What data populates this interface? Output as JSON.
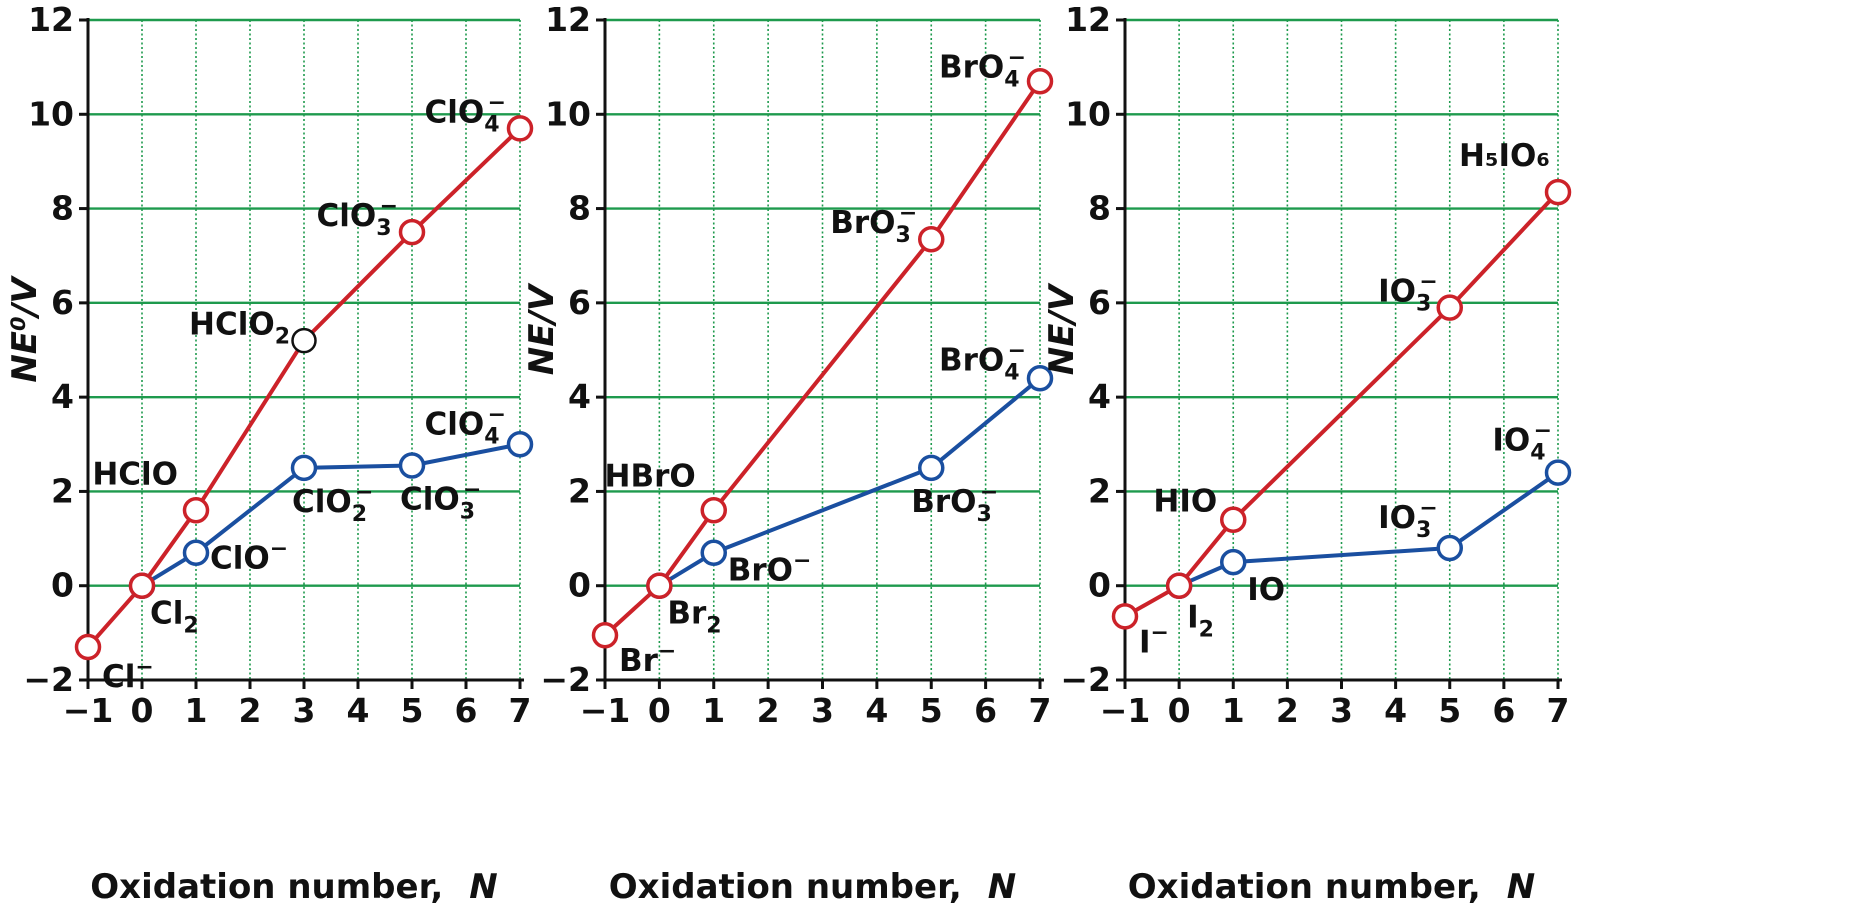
{
  "colors": {
    "red_series": "#cc2229",
    "blue_series": "#1a4fa0",
    "grid": "#1e9a4d",
    "axis": "#111111",
    "open_marker": "#ffffff",
    "neutral_marker": "#111111"
  },
  "chart_data": [
    {
      "type": "line",
      "title": "",
      "xlabel": "Oxidation number,",
      "xlabel_symbol": "N",
      "ylabel": "NE⁰/V",
      "xlim": [
        -1,
        7
      ],
      "ylim": [
        -2,
        12
      ],
      "x_ticks": [
        "−1",
        "0",
        "1",
        "2",
        "3",
        "4",
        "5",
        "6",
        "7"
      ],
      "y_ticks": [
        "−2",
        "0",
        "2",
        "4",
        "6",
        "8",
        "10",
        "12"
      ],
      "grid": true,
      "series": [
        {
          "color": "red",
          "points": [
            {
              "x": -1,
              "y": -1.3,
              "label": "Cl",
              "sup": "−",
              "sub": ""
            },
            {
              "x": 0,
              "y": 0,
              "label": "Cl",
              "sup": "",
              "sub": "2"
            },
            {
              "x": 1,
              "y": 1.6,
              "label": "HClO",
              "sup": "",
              "sub": ""
            },
            {
              "x": 3,
              "y": 5.2,
              "label": "HClO",
              "sup": "",
              "sub": "2",
              "marker": "black"
            },
            {
              "x": 5,
              "y": 7.5,
              "label": "ClO",
              "sup": "−",
              "sub": "3"
            },
            {
              "x": 7,
              "y": 9.7,
              "label": "ClO",
              "sup": "−",
              "sub": "4"
            }
          ]
        },
        {
          "color": "blue",
          "points": [
            {
              "x": 0,
              "y": 0,
              "label": "",
              "sup": "",
              "sub": ""
            },
            {
              "x": 1,
              "y": 0.7,
              "label": "ClO",
              "sup": "−",
              "sub": ""
            },
            {
              "x": 3,
              "y": 2.5,
              "label": "ClO",
              "sup": "−",
              "sub": "2"
            },
            {
              "x": 5,
              "y": 2.55,
              "label": "ClO",
              "sup": "−",
              "sub": "3"
            },
            {
              "x": 7,
              "y": 3.0,
              "label": "ClO",
              "sup": "−",
              "sub": "4"
            }
          ]
        }
      ]
    },
    {
      "type": "line",
      "title": "",
      "xlabel": "Oxidation number,",
      "xlabel_symbol": "N",
      "ylabel": "NE/V",
      "xlim": [
        -1,
        7
      ],
      "ylim": [
        -2,
        12
      ],
      "x_ticks": [
        "−1",
        "0",
        "1",
        "2",
        "3",
        "4",
        "5",
        "6",
        "7"
      ],
      "y_ticks": [
        "−2",
        "0",
        "2",
        "4",
        "6",
        "8",
        "10",
        "12"
      ],
      "grid": true,
      "series": [
        {
          "color": "red",
          "points": [
            {
              "x": -1,
              "y": -1.05,
              "label": "Br",
              "sup": "−",
              "sub": ""
            },
            {
              "x": 0,
              "y": 0,
              "label": "Br",
              "sup": "",
              "sub": "2"
            },
            {
              "x": 1,
              "y": 1.6,
              "label": "HBrO",
              "sup": "",
              "sub": ""
            },
            {
              "x": 5,
              "y": 7.35,
              "label": "BrO",
              "sup": "−",
              "sub": "3"
            },
            {
              "x": 7,
              "y": 10.7,
              "label": "BrO",
              "sup": "−",
              "sub": "4"
            }
          ]
        },
        {
          "color": "blue",
          "points": [
            {
              "x": 0,
              "y": 0,
              "label": "",
              "sup": "",
              "sub": ""
            },
            {
              "x": 1,
              "y": 0.7,
              "label": "BrO",
              "sup": "−",
              "sub": ""
            },
            {
              "x": 5,
              "y": 2.5,
              "label": "BrO",
              "sup": "−",
              "sub": "3"
            },
            {
              "x": 7,
              "y": 4.4,
              "label": "BrO",
              "sup": "−",
              "sub": "4"
            }
          ]
        }
      ]
    },
    {
      "type": "line",
      "title": "",
      "xlabel": "Oxidation number,",
      "xlabel_symbol": "N",
      "ylabel": "NE/V",
      "xlim": [
        -1,
        7
      ],
      "ylim": [
        -2,
        12
      ],
      "x_ticks": [
        "−1",
        "0",
        "1",
        "2",
        "3",
        "4",
        "5",
        "6",
        "7"
      ],
      "y_ticks": [
        "−2",
        "0",
        "2",
        "4",
        "6",
        "8",
        "10",
        "12"
      ],
      "grid": true,
      "series": [
        {
          "color": "red",
          "points": [
            {
              "x": -1,
              "y": -0.65,
              "label": "I",
              "sup": "−",
              "sub": ""
            },
            {
              "x": 0,
              "y": 0,
              "label": "I",
              "sup": "",
              "sub": "2"
            },
            {
              "x": 1,
              "y": 1.4,
              "label": "HIO",
              "sup": "",
              "sub": ""
            },
            {
              "x": 5,
              "y": 5.9,
              "label": "IO",
              "sup": "−",
              "sub": "3"
            },
            {
              "x": 7,
              "y": 8.35,
              "label": "H₅IO₆",
              "sup": "",
              "sub": ""
            }
          ]
        },
        {
          "color": "blue",
          "points": [
            {
              "x": 0,
              "y": 0,
              "label": "",
              "sup": "",
              "sub": ""
            },
            {
              "x": 1,
              "y": 0.5,
              "label": "IO",
              "sup": "",
              "sub": ""
            },
            {
              "x": 5,
              "y": 0.8,
              "label": "IO",
              "sup": "−",
              "sub": "3"
            },
            {
              "x": 7,
              "y": 2.4,
              "label": "IO",
              "sup": "−",
              "sub": "4"
            }
          ]
        }
      ]
    }
  ]
}
